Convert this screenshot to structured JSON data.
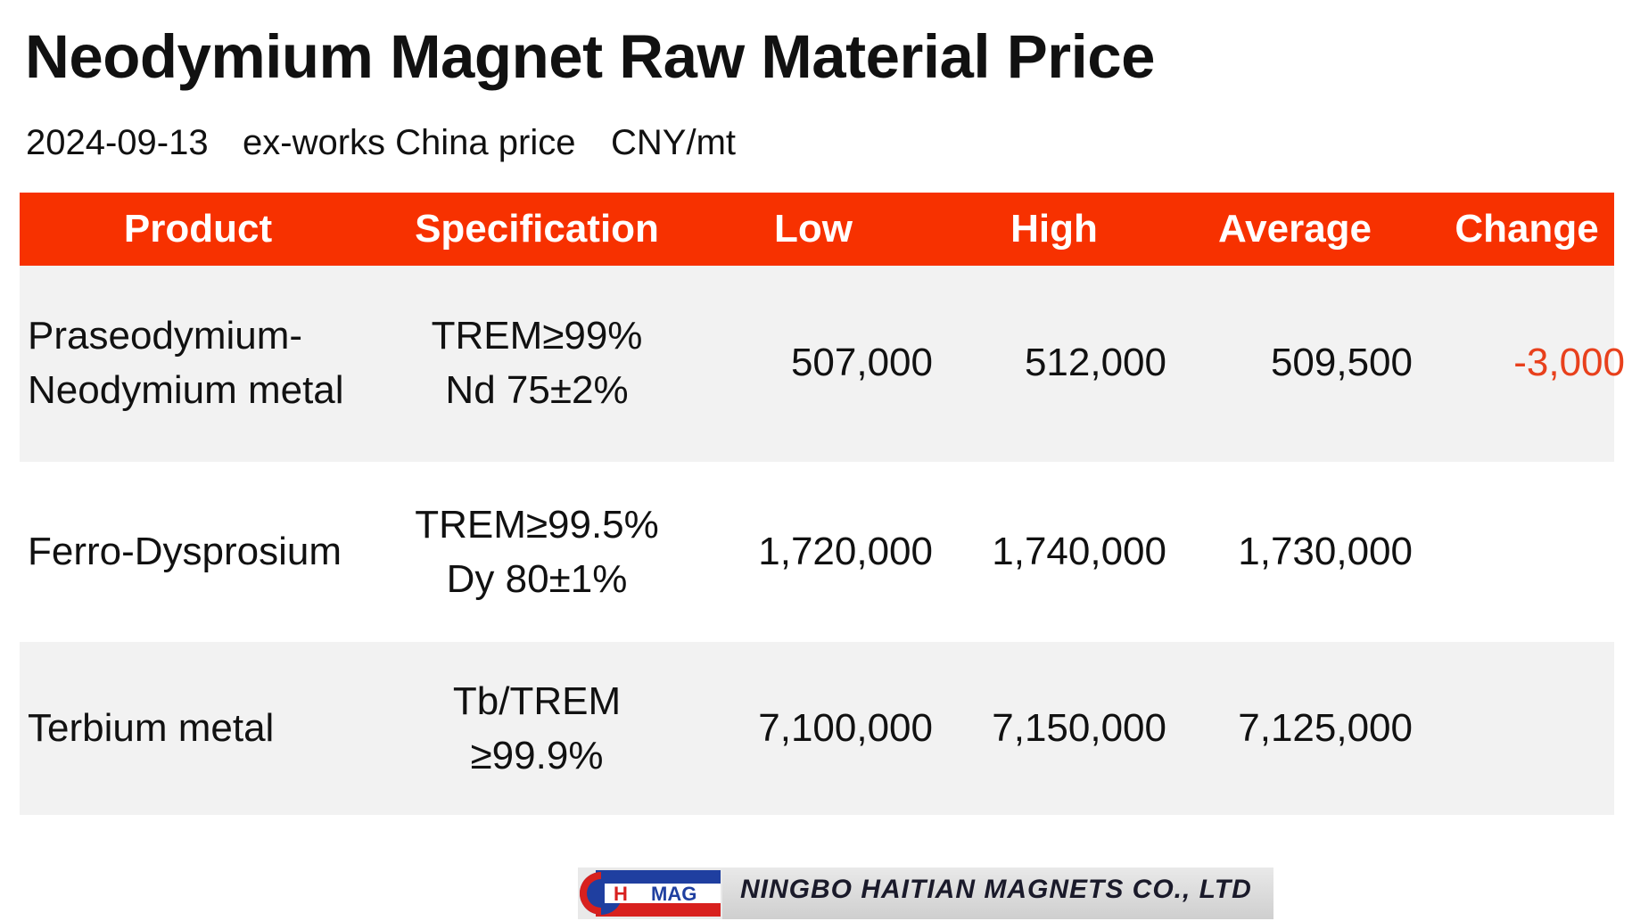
{
  "title": "Neodymium Magnet Raw Material Price",
  "subtitle": {
    "date": "2024-09-13",
    "basis": "ex-works China price",
    "unit": "CNY/mt"
  },
  "colors": {
    "header_bg": "#f73100",
    "header_text": "#ffffff",
    "row_shade": "#f2f2f2",
    "negative_change": "#e8401c"
  },
  "table": {
    "headers": {
      "product": "Product",
      "specification": "Specification",
      "low": "Low",
      "high": "High",
      "average": "Average",
      "change": "Change"
    },
    "rows": [
      {
        "product_line1": "Praseodymium-",
        "product_line2": "Neodymium metal",
        "spec_line1": "TREM≥99%",
        "spec_line2": "Nd 75±2%",
        "low": "507,000",
        "high": "512,000",
        "average": "509,500",
        "change": "-3,000"
      },
      {
        "product_line1": "Ferro-Dysprosium",
        "product_line2": "",
        "spec_line1": "TREM≥99.5%",
        "spec_line2": "Dy 80±1%",
        "low": "1,720,000",
        "high": "1,740,000",
        "average": "1,730,000",
        "change": ""
      },
      {
        "product_line1": "Terbium metal",
        "product_line2": "",
        "spec_line1": "Tb/TREM",
        "spec_line2": "≥99.9%",
        "low": "7,100,000",
        "high": "7,150,000",
        "average": "7,125,000",
        "change": ""
      }
    ]
  },
  "logo": {
    "mark_text_h": "H",
    "mark_text_mag": "MAG",
    "company": "NINGBO HAITIAN MAGNETS CO., LTD"
  }
}
